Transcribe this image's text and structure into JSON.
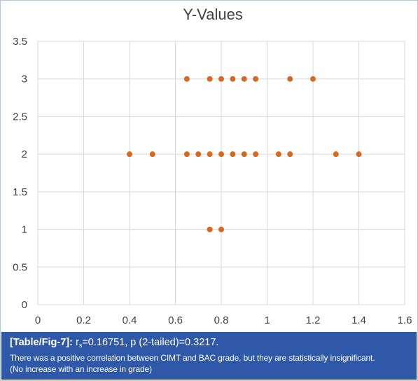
{
  "chart_data": {
    "type": "scatter",
    "title": "Y-Values",
    "xlabel": "",
    "ylabel": "",
    "xlim": [
      0,
      1.6
    ],
    "ylim": [
      0,
      3.5
    ],
    "x_ticks": [
      "0",
      "0.2",
      "0.4",
      "0.6",
      "0.8",
      "1",
      "1.2",
      "1.4",
      "1.6"
    ],
    "y_ticks": [
      "0",
      "0.5",
      "1",
      "1.5",
      "2",
      "2.5",
      "3",
      "3.5"
    ],
    "grid": true,
    "legend": "none",
    "marker_color": "#d9681e",
    "points": [
      {
        "x": 0.65,
        "y": 3
      },
      {
        "x": 0.75,
        "y": 3
      },
      {
        "x": 0.8,
        "y": 3
      },
      {
        "x": 0.85,
        "y": 3
      },
      {
        "x": 0.9,
        "y": 3
      },
      {
        "x": 0.95,
        "y": 3
      },
      {
        "x": 1.1,
        "y": 3
      },
      {
        "x": 1.2,
        "y": 3
      },
      {
        "x": 0.4,
        "y": 2
      },
      {
        "x": 0.5,
        "y": 2
      },
      {
        "x": 0.65,
        "y": 2
      },
      {
        "x": 0.7,
        "y": 2
      },
      {
        "x": 0.75,
        "y": 2
      },
      {
        "x": 0.8,
        "y": 2
      },
      {
        "x": 0.85,
        "y": 2
      },
      {
        "x": 0.9,
        "y": 2
      },
      {
        "x": 0.95,
        "y": 2
      },
      {
        "x": 1.05,
        "y": 2
      },
      {
        "x": 1.1,
        "y": 2
      },
      {
        "x": 1.3,
        "y": 2
      },
      {
        "x": 1.4,
        "y": 2
      },
      {
        "x": 0.75,
        "y": 1
      },
      {
        "x": 0.8,
        "y": 1
      }
    ]
  },
  "caption": {
    "label": "[Table/Fig-7]:",
    "stat_r": "r",
    "stat_sub": "s",
    "stat_rest": "=0.16751, p (2-tailed)=0.3217.",
    "line2": "There was a positive correlation between CIMT and BAC grade, but they are statistically insignificant.",
    "line3": "(No increase with an increase in grade)"
  }
}
